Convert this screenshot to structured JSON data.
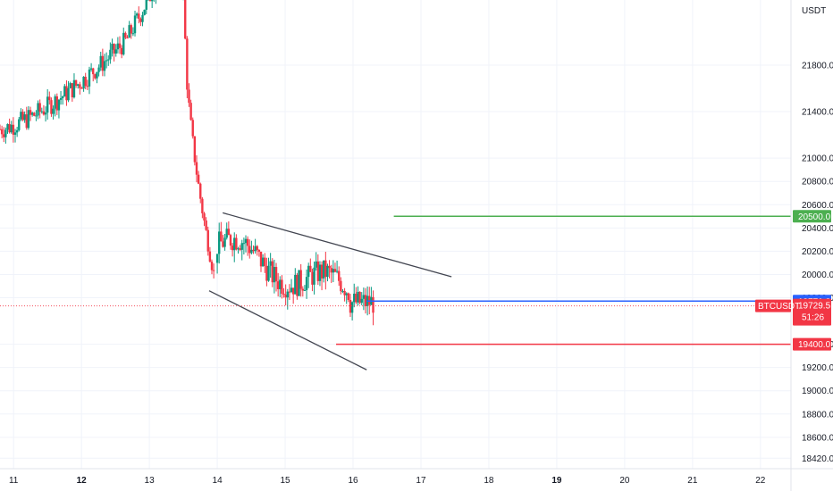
{
  "chart_data": {
    "type": "candlestick",
    "unit_label": "USDT",
    "symbol": "BTCUSDT",
    "countdown": "51:26",
    "x_axis": {
      "ticks": [
        {
          "label": "11",
          "day": 11,
          "bold": false
        },
        {
          "label": "12",
          "day": 12,
          "bold": true
        },
        {
          "label": "13",
          "day": 13,
          "bold": false
        },
        {
          "label": "14",
          "day": 14,
          "bold": false
        },
        {
          "label": "15",
          "day": 15,
          "bold": false
        },
        {
          "label": "16",
          "day": 16,
          "bold": false
        },
        {
          "label": "17",
          "day": 17,
          "bold": false
        },
        {
          "label": "18",
          "day": 18,
          "bold": false
        },
        {
          "label": "19",
          "day": 19,
          "bold": true
        },
        {
          "label": "20",
          "day": 20,
          "bold": false
        },
        {
          "label": "21",
          "day": 21,
          "bold": false
        },
        {
          "label": "22",
          "day": 22,
          "bold": false
        }
      ],
      "range": [
        10.8,
        22.45
      ]
    },
    "y_axis": {
      "range": [
        18330,
        22360
      ],
      "ticks": [
        "21800.0",
        "21400.0",
        "21000.0",
        "20800.0",
        "20600.0",
        "20400.0",
        "20200.0",
        "20000.0",
        "19800.0",
        "19400.0",
        "19200.0",
        "19000.0",
        "18800.0",
        "18600.0",
        "18420.0"
      ]
    },
    "levels": [
      {
        "name": "resistance",
        "value": 20500.0,
        "label": "20500.0",
        "color": "#4caf50",
        "from_day": 16.6
      },
      {
        "name": "entry",
        "value": 19771.0,
        "label": "19771.0",
        "color": "#2962ff",
        "from_day": 16.2
      },
      {
        "name": "support",
        "value": 19400.0,
        "label": "19400.0",
        "color": "#f23645",
        "from_day": 15.75
      }
    ],
    "last_price": {
      "value": 19729.5,
      "label": "19729.5",
      "color": "#f23645"
    },
    "wedge": {
      "upper": [
        [
          14.08,
          20530
        ],
        [
          17.45,
          19980
        ]
      ],
      "lower": [
        [
          13.88,
          19860
        ],
        [
          16.2,
          19180
        ]
      ],
      "color": "#434651"
    },
    "series": [
      {
        "kind": "rally_to_13",
        "start_day": 10.8,
        "end_day": 13.45,
        "start_price": 21250,
        "end_price": 22500,
        "bull_color": "#089981",
        "bear_color": "#f23645"
      },
      {
        "kind": "crash_13_to_14",
        "start_day": 13.5,
        "end_day": 13.95,
        "start_price": 22400,
        "end_price": 20020
      },
      {
        "kind": "range_14_to_16",
        "start_day": 14.0,
        "end_day": 16.3,
        "low": 19560,
        "high": 20450
      }
    ],
    "grid": true
  }
}
